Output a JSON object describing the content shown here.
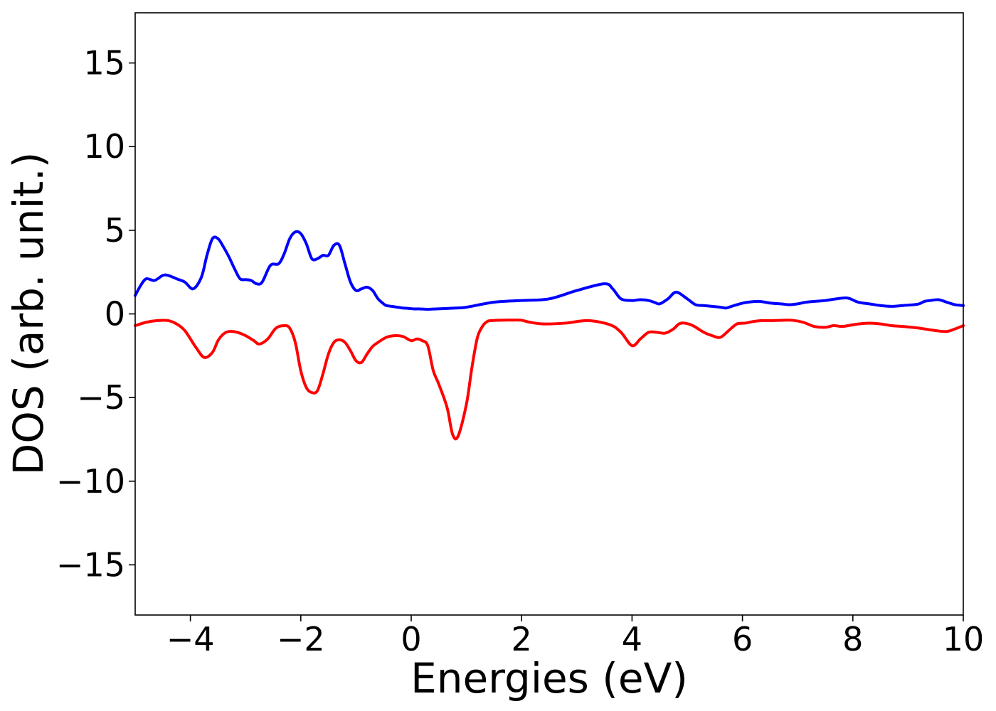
{
  "chart_data": {
    "type": "line",
    "xlabel": "Energies (eV)",
    "ylabel": "DOS (arb. unit.)",
    "xlim": [
      -5,
      10
    ],
    "ylim": [
      -18,
      18
    ],
    "xticks": [
      -4,
      -2,
      0,
      2,
      4,
      6,
      8,
      10
    ],
    "yticks": [
      -15,
      -10,
      -5,
      0,
      5,
      10,
      15
    ],
    "xtick_labels": [
      "−4",
      "−2",
      "0",
      "2",
      "4",
      "6",
      "8",
      "10"
    ],
    "ytick_labels": [
      "−15",
      "−10",
      "−5",
      "0",
      "5",
      "10",
      "15"
    ],
    "grid": false,
    "series": [
      {
        "color": "#0000ff",
        "x": [
          -5.0,
          -4.9,
          -4.8,
          -4.65,
          -4.5,
          -4.4,
          -4.25,
          -4.1,
          -3.95,
          -3.8,
          -3.7,
          -3.6,
          -3.5,
          -3.4,
          -3.3,
          -3.2,
          -3.1,
          -3.0,
          -2.9,
          -2.8,
          -2.7,
          -2.55,
          -2.4,
          -2.3,
          -2.2,
          -2.1,
          -2.0,
          -1.9,
          -1.8,
          -1.7,
          -1.6,
          -1.5,
          -1.4,
          -1.3,
          -1.2,
          -1.1,
          -1.0,
          -0.9,
          -0.8,
          -0.7,
          -0.6,
          -0.5,
          -0.45,
          -0.35,
          -0.25,
          -0.15,
          -0.05,
          0.05,
          0.15,
          0.25,
          0.35,
          0.45,
          0.6,
          0.8,
          1.0,
          1.5,
          2.0,
          2.5,
          3.0,
          3.5,
          3.65,
          3.8,
          4.0,
          4.15,
          4.3,
          4.4,
          4.5,
          4.65,
          4.8,
          5.0,
          5.15,
          5.3,
          5.45,
          5.6,
          5.7,
          5.8,
          5.95,
          6.1,
          6.3,
          6.5,
          6.7,
          6.85,
          7.0,
          7.15,
          7.3,
          7.5,
          7.7,
          7.9,
          8.1,
          8.3,
          8.5,
          8.7,
          8.9,
          9.1,
          9.2,
          9.3,
          9.4,
          9.55,
          9.7,
          9.85,
          10.0
        ],
        "y": [
          1.1,
          1.7,
          2.1,
          2.0,
          2.3,
          2.3,
          2.1,
          1.9,
          1.5,
          2.2,
          3.5,
          4.5,
          4.5,
          4.0,
          3.4,
          2.7,
          2.1,
          2.05,
          2.0,
          1.8,
          1.9,
          2.9,
          3.0,
          3.6,
          4.5,
          4.9,
          4.8,
          4.2,
          3.3,
          3.3,
          3.5,
          3.5,
          4.1,
          4.1,
          3.0,
          1.9,
          1.4,
          1.5,
          1.6,
          1.4,
          0.9,
          0.6,
          0.5,
          0.45,
          0.4,
          0.35,
          0.33,
          0.3,
          0.3,
          0.28,
          0.28,
          0.3,
          0.32,
          0.35,
          0.4,
          0.7,
          0.8,
          0.9,
          1.4,
          1.8,
          1.5,
          0.9,
          0.8,
          0.85,
          0.8,
          0.7,
          0.6,
          0.9,
          1.3,
          0.9,
          0.55,
          0.5,
          0.45,
          0.4,
          0.35,
          0.45,
          0.6,
          0.7,
          0.75,
          0.65,
          0.6,
          0.55,
          0.6,
          0.7,
          0.75,
          0.8,
          0.9,
          0.95,
          0.7,
          0.6,
          0.5,
          0.45,
          0.5,
          0.55,
          0.6,
          0.75,
          0.8,
          0.85,
          0.7,
          0.55,
          0.5
        ]
      },
      {
        "color": "#ff0000",
        "x": [
          -5.0,
          -4.8,
          -4.6,
          -4.4,
          -4.25,
          -4.1,
          -3.9,
          -3.75,
          -3.6,
          -3.5,
          -3.4,
          -3.3,
          -3.15,
          -3.0,
          -2.85,
          -2.75,
          -2.6,
          -2.45,
          -2.3,
          -2.2,
          -2.1,
          -2.0,
          -1.9,
          -1.8,
          -1.7,
          -1.6,
          -1.5,
          -1.4,
          -1.3,
          -1.2,
          -1.1,
          -1.0,
          -0.9,
          -0.8,
          -0.7,
          -0.6,
          -0.45,
          -0.3,
          -0.15,
          0.0,
          0.1,
          0.2,
          0.3,
          0.4,
          0.5,
          0.65,
          0.75,
          0.85,
          1.0,
          1.1,
          1.2,
          1.3,
          1.38,
          1.45,
          1.55,
          1.7,
          1.85,
          2.0,
          2.15,
          2.4,
          2.8,
          3.2,
          3.6,
          3.8,
          4.0,
          4.15,
          4.3,
          4.45,
          4.6,
          4.75,
          4.85,
          4.95,
          5.1,
          5.3,
          5.45,
          5.6,
          5.75,
          5.9,
          6.05,
          6.2,
          6.35,
          6.5,
          6.7,
          6.9,
          7.1,
          7.3,
          7.5,
          7.65,
          7.8,
          7.95,
          8.1,
          8.3,
          8.5,
          8.7,
          8.9,
          9.2,
          9.5,
          9.7,
          9.85,
          10.0
        ],
        "y": [
          -0.7,
          -0.5,
          -0.4,
          -0.4,
          -0.6,
          -1.0,
          -2.0,
          -2.6,
          -2.3,
          -1.6,
          -1.2,
          -1.05,
          -1.1,
          -1.3,
          -1.6,
          -1.8,
          -1.5,
          -0.85,
          -0.7,
          -0.85,
          -1.7,
          -3.4,
          -4.4,
          -4.7,
          -4.6,
          -3.6,
          -2.4,
          -1.7,
          -1.55,
          -1.7,
          -2.2,
          -2.8,
          -2.9,
          -2.4,
          -1.95,
          -1.7,
          -1.4,
          -1.3,
          -1.35,
          -1.6,
          -1.5,
          -1.6,
          -1.9,
          -3.4,
          -4.2,
          -5.6,
          -7.2,
          -7.3,
          -5.4,
          -3.2,
          -1.4,
          -0.7,
          -0.45,
          -0.4,
          -0.38,
          -0.37,
          -0.37,
          -0.38,
          -0.5,
          -0.6,
          -0.55,
          -0.4,
          -0.65,
          -1.1,
          -1.9,
          -1.5,
          -1.1,
          -1.1,
          -1.15,
          -0.9,
          -0.6,
          -0.55,
          -0.7,
          -1.1,
          -1.3,
          -1.4,
          -1.0,
          -0.6,
          -0.55,
          -0.45,
          -0.4,
          -0.4,
          -0.38,
          -0.38,
          -0.5,
          -0.75,
          -0.8,
          -0.7,
          -0.75,
          -0.68,
          -0.6,
          -0.55,
          -0.6,
          -0.7,
          -0.75,
          -0.85,
          -1.0,
          -1.05,
          -0.9,
          -0.7
        ]
      }
    ]
  }
}
